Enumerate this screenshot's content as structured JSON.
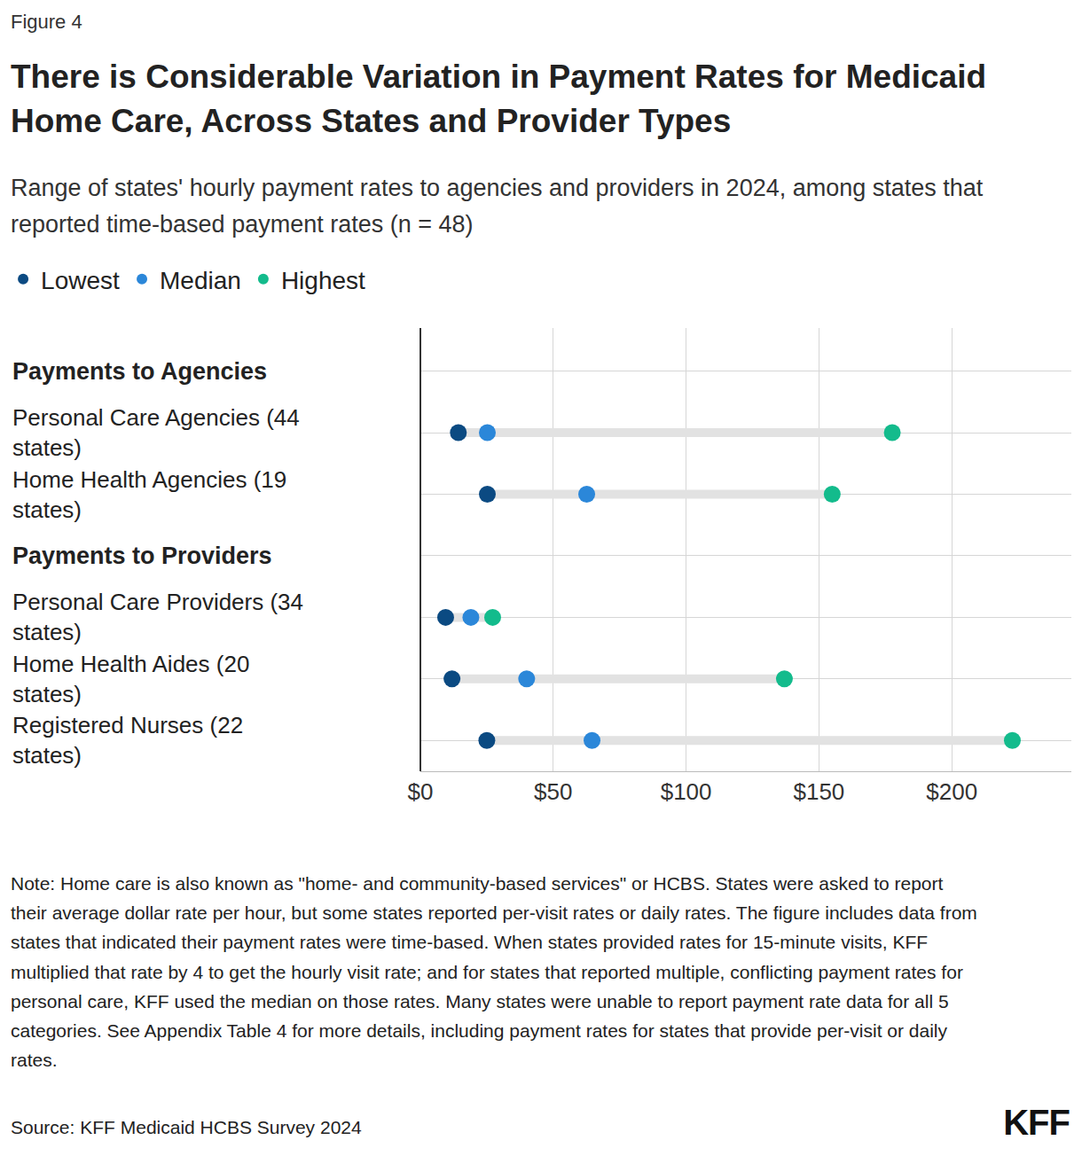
{
  "chart_data": {
    "type": "dot",
    "orientation": "horizontal",
    "figure_label": "Figure 4",
    "title": "There is Considerable Variation in Payment Rates for Medicaid Home Care, Across States and Provider Types",
    "subtitle": "Range of states' hourly payment rates to agencies and providers in 2024, among states that reported time-based payment rates (n = 48)",
    "categories": [
      "Payments to Agencies",
      "Personal Care Agencies (44 states)",
      "Home Health Agencies (19 states)",
      "Payments to Providers",
      "Personal Care Providers (34 states)",
      "Home Health Aides (20 states)",
      "Registered Nurses (22 states)"
    ],
    "series": [
      {
        "name": "Lowest",
        "color": "#0b4a82",
        "values": [
          null,
          14.3,
          25.2,
          null,
          9.5,
          11.9,
          25.0
        ]
      },
      {
        "name": "Median",
        "color": "#2b87d9",
        "values": [
          null,
          25.2,
          62.6,
          null,
          19.0,
          40.0,
          64.6
        ]
      },
      {
        "name": "Highest",
        "color": "#13bb8c",
        "values": [
          null,
          177.6,
          155.0,
          null,
          27.2,
          137.0,
          222.8
        ]
      }
    ],
    "xlim": [
      0,
      245
    ],
    "xticks": [
      {
        "value": 0,
        "label": "$0"
      },
      {
        "value": 50,
        "label": "$50"
      },
      {
        "value": 100,
        "label": "$100"
      },
      {
        "value": 150,
        "label": "$150"
      },
      {
        "value": 200,
        "label": "$200"
      }
    ],
    "grid": true,
    "legend": "top-left",
    "note": "Note: Home care is also known as \"home- and community-based services\" or HCBS. States were asked to report their average dollar rate per hour, but some states reported per-visit rates or daily rates. The figure includes data from states that indicated their payment rates were time-based. When states provided rates for 15-minute visits, KFF multiplied that rate by 4 to get the hourly visit rate; and for states that reported multiple, conflicting payment rates for personal care, KFF used the median on those rates. Many states were unable to report payment rate data for all 5 categories. See Appendix Table 4 for more details, including payment rates for states that provide per-visit or daily rates.",
    "source": "Source: KFF Medicaid HCBS Survey 2024",
    "logo": "KFF"
  }
}
